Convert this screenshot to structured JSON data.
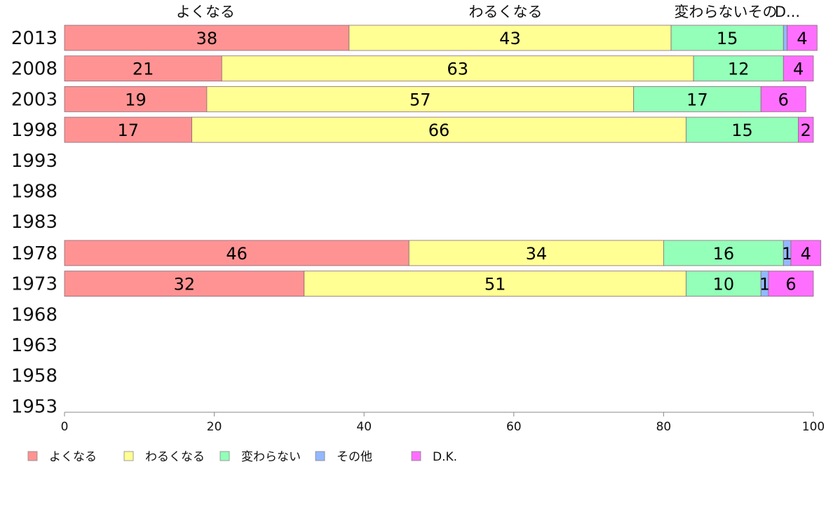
{
  "chart_data": {
    "type": "bar",
    "orientation": "horizontal",
    "stacked": true,
    "categories": [
      "2013",
      "2008",
      "2003",
      "1998",
      "1993",
      "1988",
      "1983",
      "1978",
      "1973",
      "1968",
      "1963",
      "1958",
      "1953"
    ],
    "series": [
      {
        "name": "よくなる",
        "color": "#ff9393",
        "values": [
          38,
          21,
          19,
          17,
          null,
          null,
          null,
          46,
          32,
          null,
          null,
          null,
          null
        ]
      },
      {
        "name": "わるくなる",
        "color": "#ffff93",
        "values": [
          43,
          63,
          57,
          66,
          null,
          null,
          null,
          34,
          51,
          null,
          null,
          null,
          null
        ]
      },
      {
        "name": "変わらない",
        "color": "#93ffb8",
        "values": [
          15,
          12,
          17,
          15,
          null,
          null,
          null,
          16,
          10,
          null,
          null,
          null,
          null
        ]
      },
      {
        "name": "その他",
        "color": "#93b8ff",
        "values": [
          0.5,
          0,
          0,
          0,
          null,
          null,
          null,
          1,
          1,
          null,
          null,
          null,
          null
        ]
      },
      {
        "name": "D.K.",
        "color": "#ff6fff",
        "values": [
          4,
          4,
          6,
          2,
          null,
          null,
          null,
          4,
          6,
          null,
          null,
          null,
          null
        ]
      }
    ],
    "header_labels": [
      "よくなる",
      "わるくなる",
      "変わらないその",
      "D..."
    ],
    "xlim": [
      0,
      100
    ],
    "xticks": [
      0,
      20,
      40,
      60,
      80,
      100
    ],
    "legend": "bottom"
  }
}
